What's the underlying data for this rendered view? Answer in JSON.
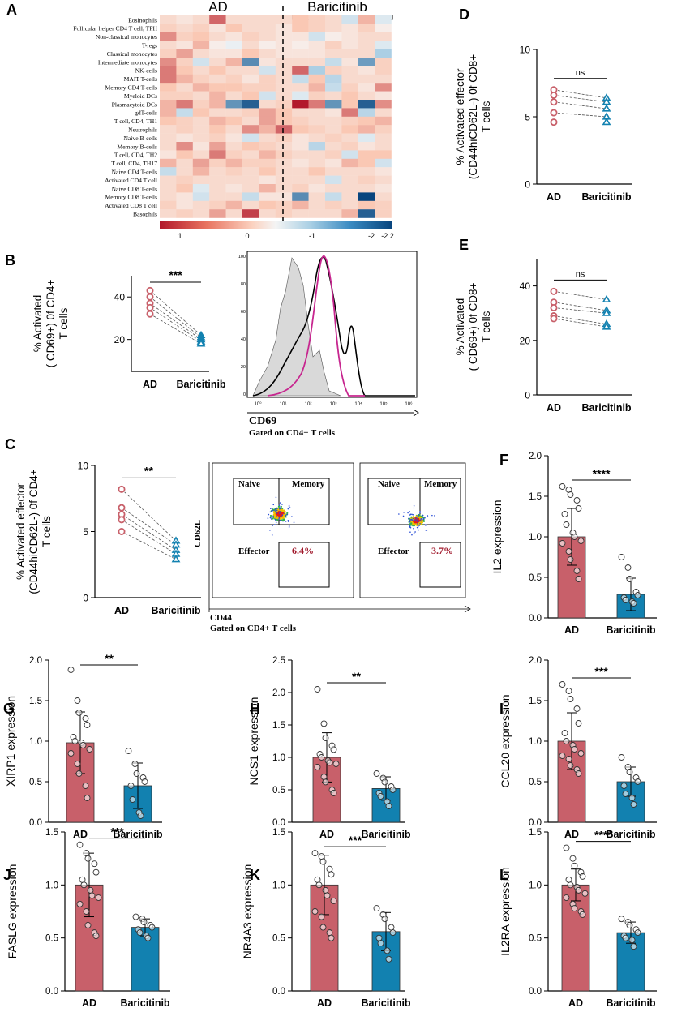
{
  "colors": {
    "ad": "#c8606a",
    "bar": "#1281b0",
    "axis": "#000000",
    "hm_red": "#b2182b",
    "hm_blue": "#08457e"
  },
  "heatmap": {
    "panel_label": "A",
    "group_labels": [
      "AD",
      "Baricitinib"
    ],
    "rows": [
      "Eosinophils",
      "Follicular helper CD4 T cell, TFH",
      "Non-classical monocytes",
      "T-regs",
      "Classical monocytes",
      "Intermediate monocytes",
      "NK-cells",
      "MAIT T-cells",
      "Memory CD4 T-cells",
      "Myeloid DCs",
      "Plasmacytoid DCs",
      "gdT-cells",
      "T cell, CD4, TH1",
      "Neutrophils",
      "Naive B-cells",
      "Memory B-cells",
      "T cell, CD4, TH2",
      "T cell, CD4, TH17",
      "Naive CD4 T-cells",
      "Activated CD4 T cell",
      "Naive CD8 T-cells",
      "Memory CD8 T-cells",
      "Activated CD8 T cell",
      "Basophils"
    ],
    "colorbar_ticks": [
      "1",
      "0",
      "-1",
      "-2",
      "-2.2"
    ],
    "values": [
      [
        0.3,
        0.2,
        0.3,
        1.0,
        0.3,
        0.3,
        0.3,
        0.3,
        0.5,
        0.4,
        0.3,
        -0.3,
        0.6,
        -0.2
      ],
      [
        0.4,
        0.3,
        0.4,
        0.2,
        0.5,
        0.3,
        0.3,
        0.2,
        0.5,
        0.4,
        0.3,
        0.2,
        0.4,
        0.1
      ],
      [
        0.8,
        0.4,
        0.5,
        0.3,
        0.2,
        0.4,
        0.3,
        0.2,
        0.2,
        -0.3,
        0.1,
        0.2,
        0.3,
        0.3
      ],
      [
        0.3,
        0.2,
        0.6,
        0.1,
        -0.1,
        0.3,
        0.1,
        0.2,
        0.1,
        0.2,
        0.4,
        0.2,
        0.3,
        -0.2
      ],
      [
        0.4,
        0.7,
        0.3,
        0.2,
        0.2,
        0.5,
        0.3,
        0.2,
        0.2,
        0.2,
        0.3,
        0.3,
        0.3,
        -0.6
      ],
      [
        0.8,
        0.4,
        -0.3,
        0.3,
        0.6,
        -1.4,
        0.2,
        0.3,
        0.3,
        0.3,
        -0.4,
        0.2,
        -1.2,
        0.4
      ],
      [
        0.9,
        0.5,
        0.3,
        0.5,
        0.3,
        0.3,
        -0.3,
        0.3,
        1.0,
        -0.6,
        0.4,
        0.3,
        0.2,
        0.4
      ],
      [
        0.9,
        0.6,
        0.4,
        0.3,
        0.4,
        0.2,
        0.4,
        0.3,
        -0.4,
        0.5,
        -0.5,
        0.3,
        0.3,
        0.3
      ],
      [
        0.5,
        0.3,
        0.6,
        0.5,
        0.5,
        0.4,
        0.4,
        0.3,
        0.3,
        0.6,
        -0.4,
        0.4,
        0.2,
        0.8
      ],
      [
        0.4,
        0.4,
        0.3,
        0.6,
        0.3,
        0.5,
        -0.3,
        0.3,
        -0.2,
        0.4,
        0.3,
        0.5,
        0.3,
        0.2
      ],
      [
        0.6,
        0.9,
        0.4,
        0.6,
        -1.3,
        -1.9,
        0.3,
        0.4,
        1.4,
        0.9,
        -1.3,
        0.5,
        -1.9,
        0.8
      ],
      [
        0.6,
        -0.4,
        0.5,
        0.3,
        0.3,
        0.4,
        0.7,
        0.5,
        0.3,
        0.3,
        0.2,
        0.9,
        -0.5,
        0.3
      ],
      [
        0.5,
        0.4,
        0.3,
        0.6,
        0.5,
        0.3,
        0.7,
        0.5,
        0.4,
        0.3,
        0.3,
        0.4,
        0.5,
        0.6
      ],
      [
        0.3,
        0.4,
        0.3,
        0.5,
        0.3,
        0.8,
        0.6,
        1.0,
        0.5,
        0.4,
        0.3,
        0.5,
        0.6,
        0.4
      ],
      [
        0.3,
        0.2,
        0.3,
        0.4,
        0.2,
        -0.3,
        0.3,
        0.4,
        0.2,
        0.3,
        0.4,
        0.3,
        -0.2,
        0.3
      ],
      [
        0.3,
        0.8,
        0.2,
        0.7,
        0.3,
        0.5,
        0.4,
        0.3,
        0.2,
        -0.5,
        0.3,
        0.4,
        0.2,
        0.3
      ],
      [
        0.2,
        0.5,
        0.3,
        0.9,
        0.4,
        0.3,
        0.6,
        0.4,
        0.3,
        0.3,
        0.4,
        -0.3,
        0.5,
        0.5
      ],
      [
        0.6,
        0.3,
        0.7,
        0.4,
        0.6,
        0.4,
        0.4,
        0.3,
        0.2,
        0.3,
        0.2,
        0.6,
        0.5,
        -0.3
      ],
      [
        -0.4,
        0.3,
        0.6,
        0.3,
        0.4,
        0.3,
        0.5,
        0.3,
        0.3,
        0.5,
        0.3,
        0.3,
        0.3,
        0.2
      ],
      [
        0.3,
        0.4,
        0.3,
        0.3,
        0.3,
        0.3,
        0.2,
        0.3,
        0.3,
        0.3,
        -0.3,
        0.3,
        0.4,
        0.3
      ],
      [
        0.3,
        0.5,
        -0.2,
        0.3,
        0.2,
        0.3,
        0.6,
        0.3,
        0.4,
        0.2,
        0.3,
        0.3,
        0.3,
        0.2
      ],
      [
        0.3,
        0.2,
        -0.3,
        0.3,
        0.3,
        -0.4,
        0.2,
        0.2,
        -1.4,
        0.3,
        -0.4,
        0.3,
        -2.2,
        0.3
      ],
      [
        0.4,
        0.2,
        0.3,
        0.4,
        0.6,
        0.3,
        0.5,
        0.4,
        0.6,
        0.3,
        0.4,
        0.3,
        0.5,
        0.4
      ],
      [
        0.3,
        0.4,
        0.3,
        0.7,
        0.3,
        1.2,
        0.3,
        0.4,
        0.3,
        0.3,
        0.3,
        0.6,
        -1.9,
        0.4
      ]
    ]
  },
  "paired_plots": [
    {
      "label": "B",
      "ylabel1": "% Activated",
      "ylabel2": "( CD69+) 0f CD4+",
      "ylabel3": "T cells",
      "yticks": [
        "20",
        "40"
      ],
      "ylim": [
        5,
        50
      ],
      "tick_values": [
        20,
        40
      ],
      "groups": [
        "AD",
        "Baricitinib"
      ],
      "sig": "***",
      "ad": [
        43,
        40,
        37,
        35,
        32
      ],
      "bar": [
        22,
        21,
        20,
        19,
        18
      ]
    },
    {
      "label": "C",
      "ylabel1": "% Activated effector",
      "ylabel2": "(CD44hiCD62L-) 0f CD4+",
      "ylabel3": "T cells",
      "yticks": [
        "0",
        "5",
        "10"
      ],
      "ylim": [
        0,
        10
      ],
      "tick_values": [
        0,
        5,
        10
      ],
      "groups": [
        "AD",
        "Baricitinib"
      ],
      "sig": "**",
      "ad": [
        8.2,
        6.8,
        6.3,
        5.9,
        5.0
      ],
      "bar": [
        4.3,
        4.0,
        3.6,
        3.3,
        2.9
      ]
    },
    {
      "label": "D",
      "ylabel1": "% Activated effector",
      "ylabel2": "(CD44hiCD62L-) 0f CD8+",
      "ylabel3": "T cells",
      "yticks": [
        "0",
        "5",
        "10"
      ],
      "ylim": [
        0,
        10
      ],
      "tick_values": [
        0,
        5,
        10
      ],
      "groups": [
        "AD",
        "Baricitinib"
      ],
      "sig": "ns",
      "ad": [
        7.0,
        6.6,
        6.1,
        5.3,
        4.6
      ],
      "bar": [
        6.4,
        6.1,
        5.6,
        5.0,
        4.6
      ]
    },
    {
      "label": "E",
      "ylabel1": "% Activated",
      "ylabel2": "( CD69+) 0f CD8+",
      "ylabel3": "T cells",
      "yticks": [
        "0",
        "20",
        "40"
      ],
      "ylim": [
        0,
        50
      ],
      "tick_values": [
        0,
        20,
        40
      ],
      "groups": [
        "AD",
        "Baricitinib"
      ],
      "sig": "ns",
      "ad": [
        38,
        34,
        32,
        29,
        28
      ],
      "bar": [
        35,
        31,
        30,
        26,
        25
      ]
    }
  ],
  "flow": {
    "hist_ticks": [
      "10⁰",
      "10¹",
      "10²",
      "10³",
      "10⁴",
      "10⁵",
      "10⁶"
    ],
    "hist_yticks": [
      "100",
      "80",
      "60",
      "40",
      "20",
      "0"
    ],
    "hist_xlabel": "CD69",
    "hist_gate": "Gated on CD4+ T cells",
    "dot_ylabel": "CD62L",
    "dot_xlabel": "CD44",
    "dot_gate": "Gated on CD4+ T cells",
    "gates": [
      "Naive",
      "Memory",
      "Effector"
    ],
    "percent_ad": "6.4%",
    "percent_bar": "3.7%"
  },
  "chart_data": [
    {
      "type": "bar",
      "panel": "F",
      "ylabel": "IL2 expression",
      "categories": [
        "AD",
        "Baricitinib"
      ],
      "values": [
        1.0,
        0.29
      ],
      "sd": [
        0.35,
        0.2
      ],
      "ylim": [
        0,
        2.0
      ],
      "yticks": [
        "0.0",
        "0.5",
        "1.0",
        "1.5",
        "2.0"
      ],
      "tick_values": [
        0,
        0.5,
        1.0,
        1.5,
        2.0
      ],
      "sig": "****",
      "points_ad": [
        1.62,
        1.58,
        1.52,
        1.45,
        1.35,
        1.28,
        1.15,
        1.05,
        1.0,
        0.95,
        0.92,
        0.82,
        0.72,
        0.58,
        0.48
      ],
      "points_bar": [
        0.75,
        0.62,
        0.48,
        0.32,
        0.28,
        0.25,
        0.22,
        0.2,
        0.18
      ]
    },
    {
      "type": "bar",
      "panel": "G",
      "ylabel": "XIRP1 expression",
      "categories": [
        "AD",
        "Baricitinib"
      ],
      "values": [
        0.98,
        0.45
      ],
      "sd": [
        0.38,
        0.28
      ],
      "ylim": [
        0,
        2.0
      ],
      "yticks": [
        "0.0",
        "0.5",
        "1.0",
        "1.5",
        "2.0"
      ],
      "tick_values": [
        0,
        0.5,
        1.0,
        1.5,
        2.0
      ],
      "sig": "**",
      "points_ad": [
        1.88,
        1.5,
        1.35,
        1.28,
        1.2,
        1.05,
        1.0,
        0.98,
        0.95,
        0.9,
        0.85,
        0.72,
        0.6,
        0.45,
        0.3
      ],
      "points_bar": [
        0.88,
        0.72,
        0.6,
        0.55,
        0.5,
        0.45,
        0.28,
        0.12,
        0.08
      ]
    },
    {
      "type": "bar",
      "panel": "H",
      "ylabel": "NCS1 expression",
      "categories": [
        "AD",
        "Baricitinib"
      ],
      "values": [
        1.0,
        0.52
      ],
      "sd": [
        0.38,
        0.18
      ],
      "ylim": [
        0,
        2.5
      ],
      "yticks": [
        "0.0",
        "0.5",
        "1.0",
        "1.5",
        "2.0",
        "2.5"
      ],
      "tick_values": [
        0,
        0.5,
        1.0,
        1.5,
        2.0,
        2.5
      ],
      "sig": "**",
      "points_ad": [
        2.05,
        1.52,
        1.3,
        1.18,
        1.12,
        1.05,
        1.0,
        0.95,
        0.92,
        0.9,
        0.85,
        0.7,
        0.62,
        0.5,
        0.45
      ],
      "points_bar": [
        0.75,
        0.68,
        0.62,
        0.55,
        0.5,
        0.45,
        0.4,
        0.32,
        0.25
      ]
    },
    {
      "type": "bar",
      "panel": "I",
      "ylabel": "CCL20 expression",
      "categories": [
        "AD",
        "Baricitinib"
      ],
      "values": [
        1.0,
        0.5
      ],
      "sd": [
        0.35,
        0.18
      ],
      "ylim": [
        0,
        2.0
      ],
      "yticks": [
        "0.0",
        "0.5",
        "1.0",
        "1.5",
        "2.0"
      ],
      "tick_values": [
        0,
        0.5,
        1.0,
        1.5,
        2.0
      ],
      "sig": "***",
      "points_ad": [
        1.7,
        1.62,
        1.52,
        1.4,
        1.22,
        1.1,
        1.0,
        0.95,
        0.9,
        0.85,
        0.82,
        0.78,
        0.7,
        0.65,
        0.6
      ],
      "points_bar": [
        0.8,
        0.68,
        0.62,
        0.55,
        0.5,
        0.45,
        0.35,
        0.3,
        0.22
      ]
    },
    {
      "type": "bar",
      "panel": "J",
      "ylabel": "FASLG expression",
      "categories": [
        "AD",
        "Baricitinib"
      ],
      "values": [
        1.0,
        0.6
      ],
      "sd": [
        0.3,
        0.08
      ],
      "ylim": [
        0,
        1.5
      ],
      "yticks": [
        "0.0",
        "0.5",
        "1.0",
        "1.5"
      ],
      "tick_values": [
        0,
        0.5,
        1.0,
        1.5
      ],
      "sig": "***",
      "points_ad": [
        1.38,
        1.3,
        1.25,
        1.2,
        1.12,
        1.05,
        1.0,
        0.95,
        0.9,
        0.88,
        0.82,
        0.75,
        0.62,
        0.55,
        0.52
      ],
      "points_bar": [
        0.7,
        0.68,
        0.65,
        0.62,
        0.6,
        0.58,
        0.55,
        0.52,
        0.5
      ]
    },
    {
      "type": "bar",
      "panel": "K",
      "ylabel": "NR4A3 expression",
      "categories": [
        "AD",
        "Baricitinib"
      ],
      "values": [
        1.0,
        0.56
      ],
      "sd": [
        0.28,
        0.18
      ],
      "ylim": [
        0,
        1.5
      ],
      "yticks": [
        "0.0",
        "0.5",
        "1.0",
        "1.5"
      ],
      "tick_values": [
        0,
        0.5,
        1.0,
        1.5
      ],
      "sig": "***",
      "points_ad": [
        1.3,
        1.27,
        1.22,
        1.15,
        1.1,
        1.05,
        1.0,
        0.95,
        0.9,
        0.85,
        0.75,
        0.7,
        0.6,
        0.55,
        0.5
      ],
      "points_bar": [
        0.78,
        0.72,
        0.68,
        0.6,
        0.55,
        0.5,
        0.45,
        0.38,
        0.3
      ]
    },
    {
      "type": "bar",
      "panel": "L",
      "ylabel": "IL2RA expression",
      "categories": [
        "AD",
        "Baricitinib"
      ],
      "values": [
        1.0,
        0.55
      ],
      "sd": [
        0.15,
        0.1
      ],
      "ylim": [
        0,
        1.5
      ],
      "yticks": [
        "0.0",
        "0.5",
        "1.0",
        "1.5"
      ],
      "tick_values": [
        0,
        0.5,
        1.0,
        1.5
      ],
      "sig": "****",
      "points_ad": [
        1.35,
        1.25,
        1.18,
        1.12,
        1.08,
        1.05,
        1.0,
        0.98,
        0.95,
        0.92,
        0.88,
        0.82,
        0.78,
        0.75,
        0.72
      ],
      "points_bar": [
        0.68,
        0.65,
        0.62,
        0.58,
        0.55,
        0.52,
        0.5,
        0.48,
        0.42
      ]
    }
  ]
}
